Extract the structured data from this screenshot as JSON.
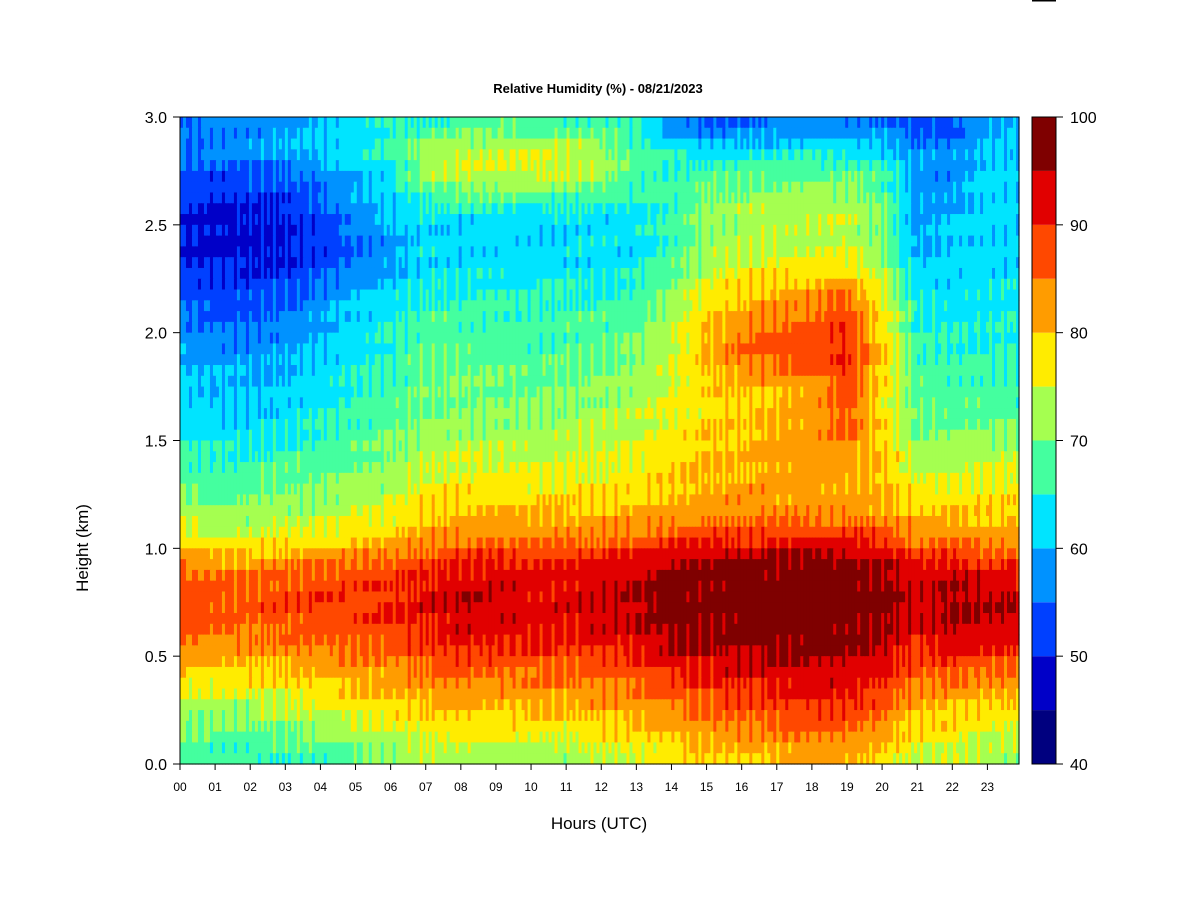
{
  "chart_data": {
    "type": "heatmap",
    "title": "Relative Humidity (%) - 08/21/2023",
    "xlabel": "Hours (UTC)",
    "ylabel": "Height (km)",
    "x_ticks": [
      "00",
      "01",
      "02",
      "03",
      "04",
      "05",
      "06",
      "07",
      "08",
      "09",
      "10",
      "11",
      "12",
      "13",
      "14",
      "15",
      "16",
      "17",
      "18",
      "19",
      "20",
      "21",
      "22",
      "23"
    ],
    "y_ticks": [
      "0.0",
      "0.5",
      "1.0",
      "1.5",
      "2.0",
      "2.5",
      "3.0"
    ],
    "xlim": [
      0,
      23.9
    ],
    "ylim": [
      0,
      3.0
    ],
    "colorbar": {
      "ticks": [
        "40",
        "50",
        "60",
        "70",
        "80",
        "90",
        "100"
      ],
      "range": [
        40,
        100
      ],
      "levels": [
        40,
        45,
        50,
        55,
        60,
        65,
        70,
        75,
        80,
        85,
        90,
        95,
        100
      ],
      "colors": [
        "#00007f",
        "#0000c8",
        "#0040ff",
        "#0092ff",
        "#00e4ff",
        "#44ff9f",
        "#a5ff50",
        "#ffec00",
        "#ff9c00",
        "#ff4800",
        "#e10000",
        "#7f0000"
      ]
    },
    "heights_km": [
      0.05,
      0.15,
      0.25,
      0.35,
      0.45,
      0.55,
      0.65,
      0.75,
      0.85,
      0.95,
      1.05,
      1.15,
      1.25,
      1.35,
      1.45,
      1.55,
      1.65,
      1.75,
      1.85,
      1.95,
      2.05,
      2.15,
      2.25,
      2.35,
      2.45,
      2.55,
      2.65,
      2.75,
      2.85,
      2.95
    ],
    "hours": [
      0,
      1,
      2,
      3,
      4,
      5,
      6,
      7,
      8,
      9,
      10,
      11,
      12,
      13,
      14,
      15,
      16,
      17,
      18,
      19,
      20,
      21,
      22,
      23
    ],
    "rh_percent": [
      [
        54,
        56,
        57,
        58,
        60,
        62,
        65,
        66,
        68,
        68,
        68,
        68,
        67,
        65,
        58,
        55,
        55,
        56,
        57,
        57,
        56,
        52,
        53,
        60
      ],
      [
        56,
        57,
        58,
        60,
        62,
        64,
        67,
        72,
        74,
        74,
        74,
        74,
        72,
        68,
        64,
        62,
        62,
        63,
        63,
        63,
        62,
        58,
        58,
        60
      ],
      [
        53,
        53,
        54,
        55,
        57,
        60,
        64,
        72,
        75,
        76,
        76,
        75,
        72,
        68,
        66,
        67,
        67,
        68,
        68,
        68,
        66,
        58,
        57,
        62
      ],
      [
        52,
        51,
        52,
        52,
        55,
        59,
        62,
        68,
        70,
        70,
        70,
        70,
        68,
        66,
        66,
        70,
        70,
        71,
        71,
        71,
        69,
        58,
        58,
        62
      ],
      [
        50,
        49,
        49,
        50,
        53,
        58,
        61,
        63,
        63,
        64,
        63,
        63,
        62,
        64,
        66,
        72,
        72,
        74,
        74,
        74,
        71,
        58,
        60,
        62
      ],
      [
        49,
        48,
        48,
        49,
        52,
        55,
        59,
        62,
        61,
        62,
        61,
        62,
        62,
        63,
        66,
        71,
        72,
        73,
        73,
        74,
        70,
        59,
        61,
        62
      ],
      [
        50,
        49,
        49,
        50,
        52,
        55,
        58,
        62,
        62,
        62,
        62,
        62,
        62,
        63,
        67,
        72,
        74,
        75,
        76,
        76,
        72,
        60,
        61,
        62
      ],
      [
        52,
        51,
        51,
        52,
        54,
        58,
        60,
        63,
        64,
        64,
        64,
        64,
        64,
        65,
        69,
        75,
        77,
        79,
        80,
        80,
        74,
        62,
        62,
        63
      ],
      [
        54,
        53,
        53,
        54,
        57,
        61,
        63,
        66,
        66,
        66,
        65,
        66,
        66,
        67,
        71,
        78,
        80,
        82,
        84,
        87,
        76,
        64,
        63,
        64
      ],
      [
        56,
        55,
        55,
        56,
        59,
        62,
        64,
        67,
        67,
        67,
        66,
        67,
        67,
        69,
        73,
        79,
        82,
        85,
        86,
        89,
        78,
        65,
        64,
        64
      ],
      [
        58,
        57,
        57,
        58,
        60,
        63,
        65,
        68,
        68,
        68,
        67,
        68,
        68,
        70,
        74,
        81,
        86,
        88,
        88,
        90,
        80,
        66,
        65,
        65
      ],
      [
        60,
        59,
        59,
        60,
        62,
        64,
        66,
        69,
        69,
        69,
        68,
        69,
        70,
        71,
        75,
        80,
        84,
        86,
        87,
        90,
        79,
        67,
        66,
        66
      ],
      [
        61,
        60,
        60,
        61,
        63,
        65,
        67,
        70,
        70,
        70,
        69,
        70,
        71,
        72,
        75,
        79,
        80,
        81,
        82,
        88,
        78,
        68,
        67,
        67
      ],
      [
        62,
        61,
        61,
        62,
        64,
        66,
        68,
        70,
        70,
        70,
        70,
        71,
        72,
        73,
        76,
        78,
        79,
        80,
        81,
        87,
        78,
        69,
        68,
        68
      ],
      [
        64,
        63,
        63,
        64,
        65,
        67,
        69,
        71,
        72,
        72,
        72,
        72,
        73,
        74,
        77,
        79,
        80,
        82,
        83,
        86,
        79,
        70,
        70,
        70
      ],
      [
        66,
        65,
        65,
        66,
        67,
        69,
        70,
        73,
        74,
        74,
        74,
        74,
        75,
        76,
        78,
        80,
        81,
        82,
        83,
        83,
        80,
        72,
        72,
        73
      ],
      [
        68,
        67,
        67,
        68,
        69,
        70,
        72,
        75,
        76,
        76,
        76,
        76,
        76,
        77,
        79,
        80,
        81,
        82,
        82,
        82,
        80,
        74,
        74,
        75
      ],
      [
        70,
        69,
        69,
        70,
        71,
        72,
        74,
        77,
        78,
        78,
        78,
        78,
        78,
        79,
        80,
        81,
        82,
        82,
        82,
        82,
        81,
        77,
        77,
        78
      ],
      [
        73,
        72,
        72,
        73,
        74,
        75,
        77,
        79,
        81,
        81,
        81,
        81,
        81,
        82,
        83,
        84,
        84,
        84,
        84,
        84,
        83,
        80,
        80,
        80
      ],
      [
        76,
        75,
        75,
        76,
        77,
        78,
        80,
        82,
        84,
        84,
        84,
        84,
        85,
        86,
        88,
        89,
        89,
        90,
        90,
        90,
        88,
        84,
        84,
        82
      ],
      [
        83,
        82,
        82,
        83,
        84,
        85,
        86,
        88,
        90,
        90,
        90,
        90,
        91,
        92,
        95,
        96,
        96,
        96,
        97,
        97,
        95,
        90,
        91,
        88
      ],
      [
        87,
        86,
        86,
        87,
        88,
        88,
        89,
        91,
        93,
        93,
        92,
        92,
        93,
        94,
        97,
        98,
        98,
        98,
        98,
        98,
        97,
        93,
        95,
        93
      ],
      [
        88,
        87,
        87,
        88,
        89,
        89,
        90,
        92,
        95,
        94,
        93,
        93,
        94,
        95,
        98,
        98,
        98,
        98,
        99,
        99,
        98,
        94,
        96,
        95
      ],
      [
        87,
        86,
        86,
        87,
        88,
        88,
        89,
        91,
        93,
        93,
        92,
        92,
        93,
        94,
        97,
        97,
        97,
        98,
        98,
        98,
        97,
        92,
        95,
        94
      ],
      [
        85,
        84,
        84,
        85,
        86,
        86,
        87,
        89,
        91,
        91,
        90,
        90,
        91,
        92,
        95,
        96,
        96,
        97,
        97,
        97,
        95,
        90,
        93,
        91
      ],
      [
        80,
        80,
        80,
        81,
        82,
        83,
        84,
        86,
        87,
        87,
        86,
        86,
        87,
        88,
        91,
        92,
        93,
        94,
        94,
        94,
        92,
        87,
        88,
        86
      ],
      [
        76,
        76,
        76,
        77,
        79,
        80,
        81,
        83,
        84,
        84,
        83,
        84,
        84,
        85,
        87,
        89,
        90,
        91,
        92,
        92,
        89,
        84,
        84,
        82
      ],
      [
        72,
        72,
        72,
        73,
        75,
        77,
        78,
        80,
        80,
        80,
        80,
        80,
        81,
        82,
        84,
        86,
        87,
        88,
        89,
        89,
        86,
        80,
        80,
        78
      ],
      [
        70,
        69,
        69,
        70,
        72,
        73,
        75,
        77,
        77,
        77,
        77,
        77,
        78,
        79,
        81,
        83,
        84,
        85,
        86,
        86,
        83,
        78,
        78,
        75
      ],
      [
        68,
        67,
        66,
        66,
        67,
        69,
        71,
        73,
        73,
        73,
        72,
        72,
        74,
        75,
        77,
        79,
        80,
        81,
        82,
        81,
        79,
        75,
        74,
        72
      ]
    ]
  }
}
